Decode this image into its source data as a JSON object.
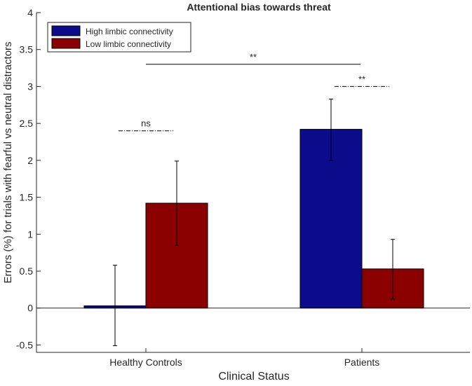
{
  "chart_data": {
    "type": "bar",
    "title": "Attentional bias towards threat",
    "xlabel": "Clinical Status",
    "ylabel": "Errors (%) for trials with fearful vs neutral distractors",
    "categories": [
      "Healthy Controls",
      "Patients"
    ],
    "ylim": [
      -0.6,
      4
    ],
    "yticks": [
      -0.5,
      0,
      0.5,
      1,
      1.5,
      2,
      2.5,
      3,
      3.5,
      4
    ],
    "ytick_labels": [
      "-0.5",
      "0",
      "0.5",
      "1",
      "1.5",
      "2",
      "2.5",
      "3",
      "3.5",
      "4"
    ],
    "legend_position": "top-left",
    "series": [
      {
        "name": "High limbic connectivity",
        "color": "#0b0b8c",
        "values": [
          0.03,
          2.42
        ],
        "error_low": [
          -0.51,
          2.0
        ],
        "error_high": [
          0.58,
          2.83
        ]
      },
      {
        "name": "Low limbic connectivity",
        "color": "#8b0000",
        "values": [
          1.42,
          0.53
        ],
        "error_low": [
          0.85,
          0.12
        ],
        "error_high": [
          1.99,
          0.93
        ]
      }
    ],
    "annotations": [
      {
        "label": "ns",
        "y": 2.4,
        "style": "dash-dot",
        "category": 0
      },
      {
        "label": "**",
        "y": 3.0,
        "style": "dash-dot",
        "category": 1
      },
      {
        "label": "**",
        "y": 3.3,
        "style": "solid",
        "from_category": 0,
        "to_category": 1
      }
    ]
  }
}
